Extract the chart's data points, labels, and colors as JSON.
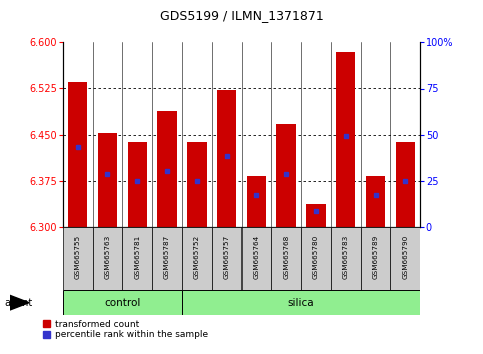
{
  "title": "GDS5199 / ILMN_1371871",
  "samples": [
    "GSM665755",
    "GSM665763",
    "GSM665781",
    "GSM665787",
    "GSM665752",
    "GSM665757",
    "GSM665764",
    "GSM665768",
    "GSM665780",
    "GSM665783",
    "GSM665789",
    "GSM665790"
  ],
  "groups": [
    "control",
    "control",
    "control",
    "control",
    "silica",
    "silica",
    "silica",
    "silica",
    "silica",
    "silica",
    "silica",
    "silica"
  ],
  "bar_tops": [
    6.535,
    6.452,
    6.438,
    6.488,
    6.437,
    6.523,
    6.382,
    6.467,
    6.337,
    6.585,
    6.382,
    6.438
  ],
  "bar_base": 6.3,
  "blue_values": [
    6.43,
    6.385,
    6.375,
    6.39,
    6.375,
    6.415,
    6.352,
    6.385,
    6.325,
    6.447,
    6.352,
    6.375
  ],
  "ylim_left": [
    6.3,
    6.6
  ],
  "ylim_right": [
    0,
    100
  ],
  "yticks_left": [
    6.3,
    6.375,
    6.45,
    6.525,
    6.6
  ],
  "yticks_right": [
    0,
    25,
    50,
    75,
    100
  ],
  "ytick_labels_right": [
    "0",
    "25",
    "50",
    "75",
    "100%"
  ],
  "bar_color": "#cc0000",
  "blue_color": "#3333cc",
  "control_color": "#90ee90",
  "silica_color": "#90ee90",
  "agent_label": "agent",
  "control_label": "control",
  "silica_label": "silica",
  "legend_red": "transformed count",
  "legend_blue": "percentile rank within the sample",
  "bar_width": 0.65,
  "control_count": 4,
  "silica_count": 8
}
